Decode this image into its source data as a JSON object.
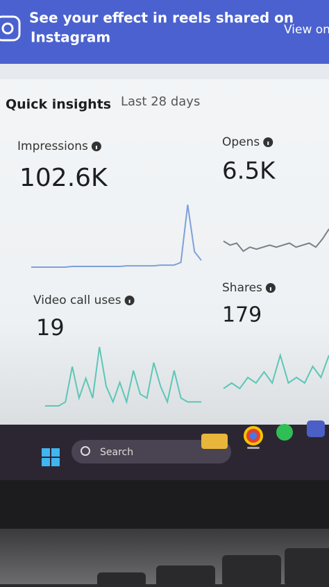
{
  "banner": {
    "title_line1": "See your effect in reels shared on",
    "title_line2": "Instagram",
    "link": "View on"
  },
  "insights": {
    "title": "Quick insights",
    "period": "Last 28 days",
    "metrics": [
      {
        "label": "Impressions",
        "value": "102.6K",
        "trend": [
          2,
          2,
          2,
          2,
          2,
          2,
          3,
          3,
          3,
          3,
          3,
          3,
          3,
          3,
          4,
          4,
          4,
          4,
          4,
          5,
          5,
          5,
          9,
          95,
          25,
          12
        ]
      },
      {
        "label": "Opens",
        "value": "6.5K",
        "trend": [
          8,
          6,
          7,
          3,
          5,
          4,
          5,
          6,
          5,
          6,
          7,
          5,
          6,
          7,
          5,
          9,
          14
        ]
      },
      {
        "label": "Video call uses",
        "value": "19",
        "trend": [
          0,
          0,
          0,
          1,
          10,
          2,
          7,
          2,
          15,
          5,
          1,
          6,
          1,
          9,
          3,
          2,
          11,
          5,
          1,
          9,
          2,
          1,
          1,
          1
        ]
      },
      {
        "label": "Shares",
        "value": "179",
        "trend": [
          1,
          2,
          1,
          3,
          2,
          4,
          2,
          7,
          2,
          3,
          2,
          5,
          3,
          7
        ]
      }
    ]
  },
  "taskbar": {
    "search": "Search"
  }
}
